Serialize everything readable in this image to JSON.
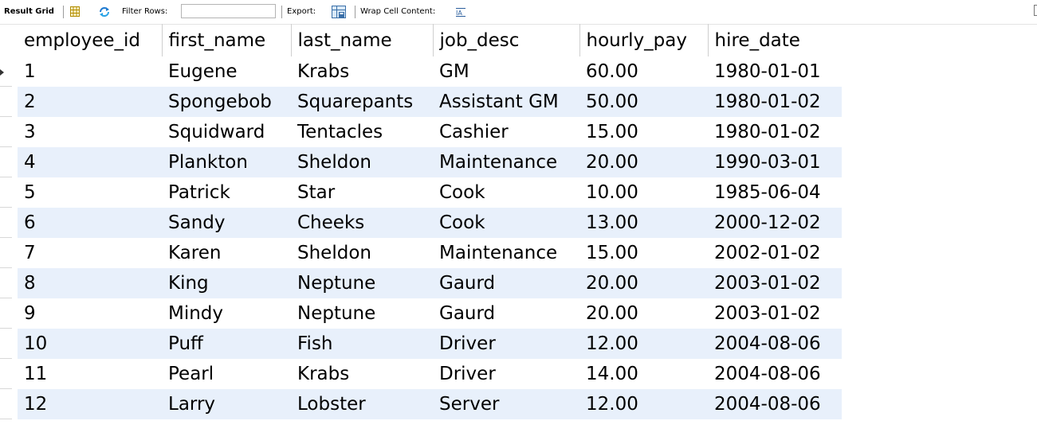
{
  "toolbar": {
    "result_grid_label": "Result Grid",
    "grid_icon": "grid-view-icon",
    "filter_icon": "refresh-filter-icon",
    "filter_rows_label": "Filter Rows:",
    "filter_rows_value": "",
    "export_label": "Export:",
    "export_icon": "export-icon",
    "wrap_cell_label": "Wrap Cell Content:",
    "wrap_icon": "wrap-cell-icon"
  },
  "grid": {
    "columns": [
      "employee_id",
      "first_name",
      "last_name",
      "job_desc",
      "hourly_pay",
      "hire_date"
    ],
    "rows": [
      [
        "1",
        "Eugene",
        "Krabs",
        "GM",
        "60.00",
        "1980-01-01"
      ],
      [
        "2",
        "Spongebob",
        "Squarepants",
        "Assistant GM",
        "50.00",
        "1980-01-02"
      ],
      [
        "3",
        "Squidward",
        "Tentacles",
        "Cashier",
        "15.00",
        "1980-01-02"
      ],
      [
        "4",
        "Plankton",
        "Sheldon",
        "Maintenance",
        "20.00",
        "1990-03-01"
      ],
      [
        "5",
        "Patrick",
        "Star",
        "Cook",
        "10.00",
        "1985-06-04"
      ],
      [
        "6",
        "Sandy",
        "Cheeks",
        "Cook",
        "13.00",
        "2000-12-02"
      ],
      [
        "7",
        "Karen",
        "Sheldon",
        "Maintenance",
        "15.00",
        "2002-01-02"
      ],
      [
        "8",
        "King",
        "Neptune",
        "Gaurd",
        "20.00",
        "2003-01-02"
      ],
      [
        "9",
        "Mindy",
        "Neptune",
        "Gaurd",
        "20.00",
        "2003-01-02"
      ],
      [
        "10",
        "Puff",
        "Fish",
        "Driver",
        "12.00",
        "2004-08-06"
      ],
      [
        "11",
        "Pearl",
        "Krabs",
        "Driver",
        "14.00",
        "2004-08-06"
      ],
      [
        "12",
        "Larry",
        "Lobster",
        "Server",
        "12.00",
        "2004-08-06"
      ]
    ],
    "row_stripe_color": "#e8f0fb"
  }
}
